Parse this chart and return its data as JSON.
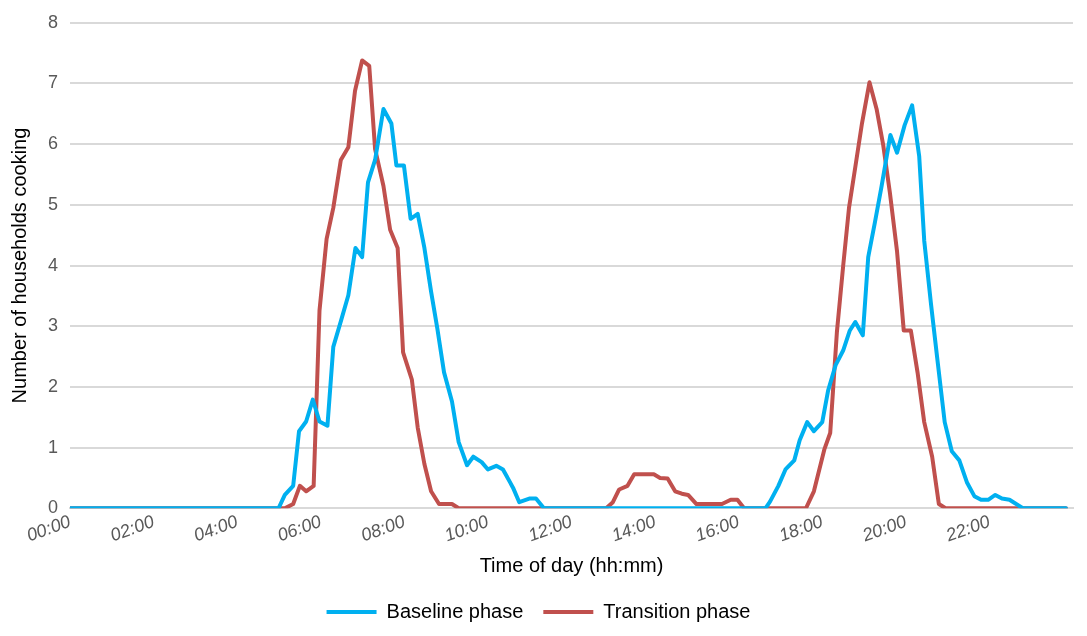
{
  "chart_data": {
    "type": "line",
    "xlabel": "Time of day (hh:mm)",
    "ylabel": "Number of households cooking",
    "xlim": [
      0,
      24
    ],
    "ylim": [
      0,
      8
    ],
    "yticks": [
      0,
      1,
      2,
      3,
      4,
      5,
      6,
      7,
      8
    ],
    "xticks": [
      {
        "value": 0,
        "label": "00:00"
      },
      {
        "value": 2,
        "label": "02:00"
      },
      {
        "value": 4,
        "label": "04:00"
      },
      {
        "value": 6,
        "label": "06:00"
      },
      {
        "value": 8,
        "label": "08:00"
      },
      {
        "value": 10,
        "label": "10:00"
      },
      {
        "value": 12,
        "label": "12:00"
      },
      {
        "value": 14,
        "label": "14:00"
      },
      {
        "value": 16,
        "label": "16:00"
      },
      {
        "value": 18,
        "label": "18:00"
      },
      {
        "value": 20,
        "label": "20:00"
      },
      {
        "value": 22,
        "label": "22:00"
      }
    ],
    "grid": "y",
    "legend": "bottom",
    "marker": "none",
    "series": [
      {
        "name": "Baseline phase",
        "color": "#00b0f0",
        "x": [
          0,
          4.99,
          5.14,
          5.34,
          5.48,
          5.65,
          5.81,
          5.97,
          6.16,
          6.3,
          6.48,
          6.66,
          6.83,
          6.99,
          7.13,
          7.3,
          7.5,
          7.69,
          7.81,
          7.99,
          8.15,
          8.32,
          8.48,
          8.64,
          8.79,
          8.95,
          9.14,
          9.3,
          9.5,
          9.65,
          9.85,
          10.0,
          10.2,
          10.36,
          10.6,
          10.75,
          10.99,
          11.15,
          11.34,
          16.64,
          16.75,
          16.95,
          17.12,
          17.33,
          17.46,
          17.64,
          17.8,
          18.0,
          18.14,
          18.32,
          18.5,
          18.66,
          18.79,
          18.97,
          19.1,
          19.26,
          19.42,
          19.63,
          19.79,
          19.97,
          20.15,
          20.32,
          20.44,
          20.6,
          20.75,
          20.93,
          21.1,
          21.28,
          21.46,
          21.64,
          21.8,
          21.97,
          22.14,
          22.3,
          22.48,
          22.8,
          23.83
        ],
        "values": [
          0,
          0,
          0.22,
          0.37,
          1.27,
          1.43,
          1.79,
          1.43,
          1.36,
          2.66,
          3.08,
          3.51,
          4.29,
          4.14,
          5.37,
          5.74,
          6.58,
          6.34,
          5.65,
          5.65,
          4.77,
          4.85,
          4.29,
          3.57,
          2.96,
          2.24,
          1.76,
          1.09,
          0.71,
          0.85,
          0.76,
          0.64,
          0.7,
          0.64,
          0.34,
          0.1,
          0.16,
          0.16,
          0,
          0,
          0.11,
          0.37,
          0.64,
          0.79,
          1.12,
          1.42,
          1.27,
          1.42,
          1.94,
          2.36,
          2.6,
          2.93,
          3.07,
          2.85,
          4.14,
          4.71,
          5.31,
          6.15,
          5.86,
          6.31,
          6.64,
          5.8,
          4.41,
          3.38,
          2.48,
          1.42,
          0.94,
          0.79,
          0.43,
          0.2,
          0.14,
          0.14,
          0.22,
          0.16,
          0.14,
          0,
          0
        ]
      },
      {
        "name": "Transition phase",
        "color": "#c0504d",
        "x": [
          0,
          5.14,
          5.34,
          5.5,
          5.65,
          5.83,
          5.97,
          6.14,
          6.3,
          6.48,
          6.66,
          6.82,
          6.99,
          7.16,
          7.3,
          7.5,
          7.66,
          7.84,
          7.97,
          8.18,
          8.32,
          8.48,
          8.64,
          8.83,
          9.14,
          9.3,
          12.83,
          12.99,
          13.14,
          13.34,
          13.5,
          13.97,
          14.12,
          14.3,
          14.48,
          14.64,
          14.79,
          14.99,
          15.6,
          15.81,
          15.97,
          16.13,
          17.61,
          17.8,
          17.93,
          18.05,
          18.19,
          18.35,
          18.5,
          18.64,
          18.79,
          18.95,
          19.13,
          19.3,
          19.46,
          19.62,
          19.79,
          19.95,
          20.12,
          20.28,
          20.44,
          20.63,
          20.79,
          20.95,
          23.83
        ],
        "values": [
          0,
          0,
          0.07,
          0.37,
          0.28,
          0.37,
          3.26,
          4.44,
          4.95,
          5.74,
          5.95,
          6.88,
          7.38,
          7.29,
          5.92,
          5.31,
          4.59,
          4.29,
          2.57,
          2.12,
          1.33,
          0.73,
          0.28,
          0.07,
          0.07,
          0,
          0,
          0.1,
          0.31,
          0.37,
          0.56,
          0.56,
          0.5,
          0.49,
          0.28,
          0.24,
          0.22,
          0.07,
          0.07,
          0.14,
          0.14,
          0,
          0,
          0.28,
          0.64,
          0.97,
          1.24,
          2.9,
          3.99,
          4.95,
          5.62,
          6.34,
          7.02,
          6.58,
          5.98,
          5.19,
          4.23,
          2.93,
          2.93,
          2.24,
          1.42,
          0.85,
          0.07,
          0,
          0
        ]
      }
    ]
  }
}
